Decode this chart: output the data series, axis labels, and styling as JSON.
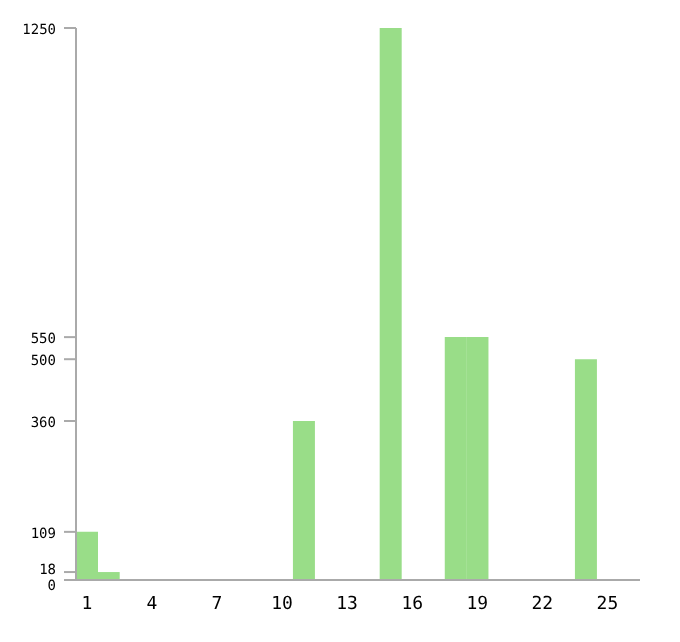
{
  "chart_data": {
    "type": "bar",
    "categories": [
      "1",
      null,
      null,
      "4",
      null,
      null,
      "7",
      null,
      null,
      "10",
      null,
      null,
      "13",
      null,
      null,
      "16",
      null,
      null,
      "19",
      null,
      null,
      "22",
      null,
      null,
      "25",
      null
    ],
    "values": [
      109,
      18,
      0,
      0,
      0,
      0,
      0,
      0,
      0,
      0,
      360,
      0,
      0,
      0,
      1250,
      0,
      0,
      550,
      550,
      0,
      0,
      0,
      0,
      500,
      0,
      0
    ],
    "color": "#99dd88",
    "ylim": [
      0,
      1250
    ],
    "yticks": [
      0,
      18,
      109,
      360,
      500,
      550,
      1250
    ],
    "grid": false
  }
}
